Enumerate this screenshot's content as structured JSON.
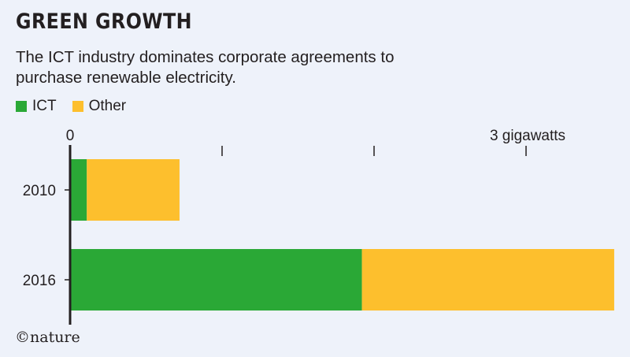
{
  "title": "GREEN GROWTH",
  "subtitle": "The ICT industry dominates corporate agreements to purchase renewable electricity.",
  "credit": "©nature",
  "colors": {
    "ICT": "#2aa836",
    "Other": "#fdbf2d",
    "axis": "#231f20"
  },
  "chart_data": {
    "type": "bar",
    "orientation": "horizontal",
    "stacked": true,
    "categories": [
      "2010",
      "2016"
    ],
    "series": [
      {
        "name": "ICT",
        "values": [
          0.11,
          1.92
        ]
      },
      {
        "name": "Other",
        "values": [
          0.61,
          1.66
        ]
      }
    ],
    "xlim": [
      0,
      3.5
    ],
    "xticks": [
      0,
      1,
      2,
      3
    ],
    "xtick_labels": [
      "0",
      "",
      "",
      "3 gigawatts"
    ],
    "legend": "top-left",
    "grid": false
  }
}
